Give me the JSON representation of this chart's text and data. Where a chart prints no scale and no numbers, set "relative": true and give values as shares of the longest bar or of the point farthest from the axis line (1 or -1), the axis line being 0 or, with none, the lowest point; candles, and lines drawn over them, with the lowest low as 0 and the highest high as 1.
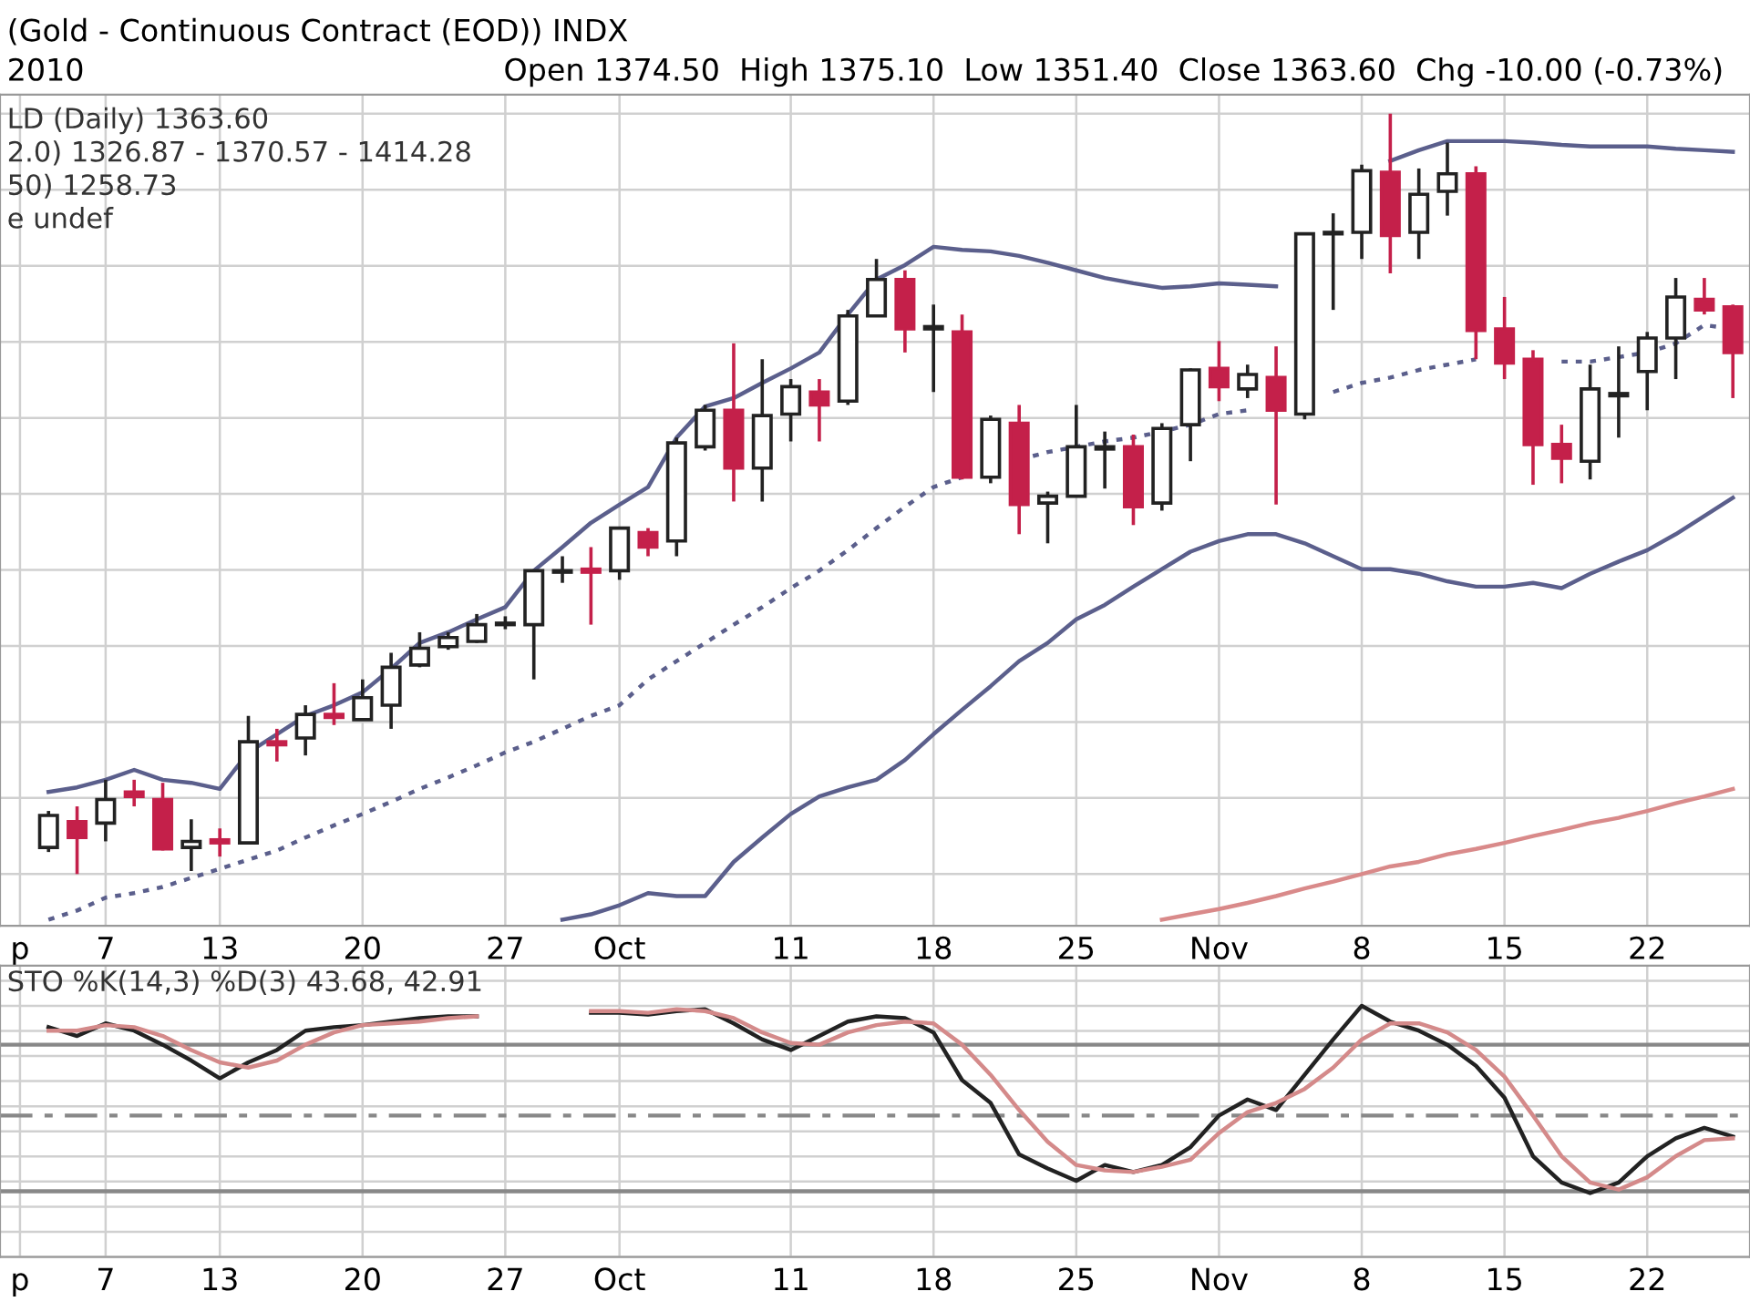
{
  "chart_data": [
    {
      "type": "candlestick",
      "title": "(Gold - Continuous Contract (EOD)) INDX",
      "subtitle": "2010",
      "annotations": [
        "Open 1374.50  High 1375.10  Low 1351.40  Close 1363.60  Chg -10.00 (-0.73%)",
        "LD (Daily) 1363.60",
        "2.0) 1326.87 - 1370.57 - 1414.28",
        "50) 1258.73",
        "e undef"
      ],
      "categories": [
        "p",
        null,
        null,
        "7",
        null,
        null,
        null,
        "13",
        null,
        null,
        null,
        null,
        "20",
        null,
        null,
        null,
        null,
        "27",
        null,
        null,
        null,
        "Oct",
        null,
        null,
        null,
        null,
        null,
        "11",
        null,
        null,
        null,
        null,
        "18",
        null,
        null,
        null,
        null,
        "25",
        null,
        null,
        null,
        null,
        "Nov",
        null,
        null,
        null,
        null,
        "8",
        null,
        null,
        null,
        null,
        "15",
        null,
        null,
        null,
        null,
        "22",
        null,
        null,
        null
      ],
      "ohlc": [
        null,
        [
          0.035,
          0.083,
          0.029,
          0.077
        ],
        [
          0.069,
          0.089,
          0,
          0.048
        ],
        [
          0.067,
          0.124,
          0.043,
          0.098
        ],
        [
          0.108,
          0.124,
          0.089,
          0.102
        ],
        [
          0.098,
          0.12,
          0.031,
          0.033
        ],
        [
          0.035,
          0.072,
          0.004,
          0.043
        ],
        [
          0.045,
          0.06,
          0.023,
          0.041
        ],
        [
          0.041,
          0.208,
          0.041,
          0.174
        ],
        [
          0.174,
          0.191,
          0.148,
          0.17
        ],
        [
          0.179,
          0.222,
          0.156,
          0.21
        ],
        [
          0.21,
          0.251,
          0.196,
          0.206
        ],
        [
          0.203,
          0.256,
          0.203,
          0.232
        ],
        [
          0.222,
          0.291,
          0.191,
          0.272
        ],
        [
          0.275,
          0.318,
          0.272,
          0.297
        ],
        [
          0.299,
          0.318,
          0.295,
          0.311
        ],
        [
          0.306,
          0.342,
          0.304,
          0.328
        ],
        [
          0.328,
          0.339,
          0.322,
          0.33
        ],
        [
          0.328,
          0.399,
          0.256,
          0.399
        ],
        [
          0.397,
          0.418,
          0.383,
          0.399
        ],
        [
          0.401,
          0.43,
          0.328,
          0.397
        ],
        [
          0.399,
          0.455,
          0.387,
          0.455
        ],
        [
          0.449,
          0.455,
          0.418,
          0.43
        ],
        [
          0.438,
          0.574,
          0.418,
          0.567
        ],
        [
          0.562,
          0.617,
          0.557,
          0.61
        ],
        [
          0.61,
          0.698,
          0.49,
          0.534
        ],
        [
          0.534,
          0.677,
          0.49,
          0.603
        ],
        [
          0.605,
          0.651,
          0.569,
          0.641
        ],
        [
          0.634,
          0.651,
          0.569,
          0.617
        ],
        [
          0.622,
          0.742,
          0.617,
          0.734
        ],
        [
          0.734,
          0.809,
          0.734,
          0.782
        ],
        [
          0.782,
          0.794,
          0.686,
          0.717
        ],
        [
          0.717,
          0.749,
          0.634,
          0.72
        ],
        [
          0.713,
          0.736,
          0.519,
          0.522
        ],
        [
          0.522,
          0.603,
          0.514,
          0.598
        ],
        [
          0.593,
          0.617,
          0.447,
          0.486
        ],
        [
          0.488,
          0.503,
          0.435,
          0.497
        ],
        [
          0.497,
          0.617,
          0.497,
          0.562
        ],
        [
          0.559,
          0.582,
          0.507,
          0.562
        ],
        [
          0.562,
          0.578,
          0.459,
          0.483
        ],
        [
          0.488,
          0.593,
          0.478,
          0.586
        ],
        [
          0.591,
          0.665,
          0.543,
          0.663
        ],
        [
          0.665,
          0.701,
          0.622,
          0.641
        ],
        [
          0.638,
          0.67,
          0.626,
          0.657
        ],
        [
          0.653,
          0.694,
          0.486,
          0.61
        ],
        [
          0.605,
          0.842,
          0.598,
          0.842
        ],
        [
          0.842,
          0.869,
          0.742,
          0.844
        ],
        [
          0.844,
          0.933,
          0.809,
          0.925
        ],
        [
          0.923,
          1,
          0.79,
          0.84
        ],
        [
          0.844,
          0.928,
          0.809,
          0.894
        ],
        [
          0.898,
          0.962,
          0.866,
          0.921
        ],
        [
          0.921,
          0.931,
          0.677,
          0.715
        ],
        [
          0.717,
          0.759,
          0.651,
          0.672
        ],
        [
          0.677,
          0.689,
          0.512,
          0.565
        ],
        [
          0.565,
          0.591,
          0.514,
          0.547
        ],
        [
          0.543,
          0.67,
          0.519,
          0.638
        ],
        [
          0.629,
          0.694,
          0.574,
          0.632
        ],
        [
          0.661,
          0.713,
          0.61,
          0.705
        ],
        [
          0.705,
          0.784,
          0.651,
          0.759
        ],
        [
          0.756,
          0.784,
          0.736,
          0.742
        ],
        [
          0.746,
          0.749,
          0.626,
          0.686
        ]
      ],
      "series": [
        {
          "type": "line",
          "color": "#5b5f8c",
          "line_style": "solid",
          "values": [
            null,
            0.108,
            0.114,
            0.124,
            0.137,
            0.124,
            0.12,
            0.112,
            0.16,
            0.184,
            0.208,
            0.222,
            0.239,
            0.27,
            0.304,
            0.318,
            0.335,
            0.351,
            0.399,
            0.43,
            0.462,
            0.486,
            0.509,
            0.574,
            0.615,
            0.626,
            0.646,
            0.665,
            0.686,
            0.736,
            0.782,
            0.801,
            0.825,
            0.821,
            0.819,
            0.813,
            0.804,
            0.794,
            0.784,
            0.777,
            0.771,
            0.773,
            0.777,
            0.775,
            0.773,
            null,
            null,
            null,
            0.938,
            0.952,
            0.964,
            0.964,
            0.964,
            0.962,
            0.959,
            0.957,
            0.957,
            0.957,
            0.954,
            0.952,
            0.95
          ]
        },
        {
          "type": "line",
          "color": "#5b5f8c",
          "line_style": "dotted",
          "values": [
            null,
            -0.06,
            -0.048,
            -0.031,
            -0.025,
            -0.017,
            -0.005,
            0.007,
            0.019,
            0.031,
            0.048,
            0.064,
            0.079,
            0.095,
            0.112,
            0.127,
            0.143,
            0.16,
            0.174,
            0.191,
            0.208,
            0.222,
            0.256,
            0.28,
            0.304,
            0.328,
            0.351,
            0.376,
            0.399,
            0.426,
            0.455,
            0.483,
            0.509,
            0.522,
            null,
            0.545,
            0.555,
            0.562,
            0.569,
            0.574,
            0.582,
            0.591,
            0.605,
            0.61,
            null,
            null,
            0.634,
            0.646,
            0.653,
            0.663,
            0.67,
            0.677,
            null,
            null,
            0.674,
            0.674,
            0.68,
            0.686,
            0.698,
            0.722,
            0.717
          ]
        },
        {
          "type": "line",
          "color": "#5b5f8c",
          "line_style": "solid",
          "values": [
            null,
            null,
            null,
            null,
            null,
            null,
            null,
            null,
            null,
            null,
            null,
            null,
            null,
            null,
            null,
            null,
            null,
            null,
            null,
            -0.06,
            -0.053,
            -0.041,
            -0.025,
            -0.029,
            -0.029,
            0.016,
            0.048,
            0.079,
            0.102,
            0.114,
            0.124,
            0.15,
            0.184,
            0.216,
            0.247,
            0.28,
            0.304,
            0.335,
            0.354,
            0.378,
            0.401,
            0.424,
            0.438,
            0.447,
            0.447,
            0.435,
            0.418,
            0.401,
            0.401,
            0.395,
            0.385,
            0.378,
            0.378,
            0.383,
            0.376,
            0.395,
            0.411,
            0.426,
            0.447,
            0.471,
            0.495
          ]
        },
        {
          "type": "line",
          "color": "#d98a8a",
          "line_style": "solid",
          "values": [
            null,
            null,
            null,
            null,
            null,
            null,
            null,
            null,
            null,
            null,
            null,
            null,
            null,
            null,
            null,
            null,
            null,
            null,
            null,
            null,
            null,
            null,
            null,
            null,
            null,
            null,
            null,
            null,
            null,
            null,
            null,
            null,
            null,
            null,
            null,
            null,
            null,
            null,
            null,
            null,
            -0.06,
            -0.053,
            -0.046,
            -0.038,
            -0.029,
            -0.019,
            -0.01,
            0,
            0.01,
            0.016,
            0.026,
            0.033,
            0.041,
            0.05,
            0.058,
            0.067,
            0.074,
            0.083,
            0.093,
            0.102,
            0.112
          ]
        }
      ],
      "relative": true,
      "grid": true,
      "tick_labels": "x"
    },
    {
      "type": "line",
      "title": "STO %K(14,3) %D(3) 43.68, 42.91",
      "categories": [
        "p",
        null,
        null,
        "7",
        null,
        null,
        null,
        "13",
        null,
        null,
        null,
        null,
        "20",
        null,
        null,
        null,
        null,
        "27",
        null,
        null,
        null,
        "Oct",
        null,
        null,
        null,
        null,
        null,
        "11",
        null,
        null,
        null,
        null,
        "18",
        null,
        null,
        null,
        null,
        "25",
        null,
        null,
        null,
        null,
        "Nov",
        null,
        null,
        null,
        null,
        "8",
        null,
        null,
        null,
        null,
        "15",
        null,
        null,
        null,
        null,
        "22",
        null,
        null,
        null
      ],
      "series": [
        {
          "color": "#222222",
          "values": [
            null,
            0.915,
            0.88,
            0.93,
            0.901,
            0.845,
            0.782,
            0.711,
            0.775,
            0.824,
            0.901,
            0.915,
            0.923,
            0.937,
            0.951,
            0.958,
            0.958,
            null,
            null,
            null,
            0.972,
            0.972,
            0.965,
            0.979,
            0.986,
            0.93,
            0.866,
            0.824,
            0.88,
            0.937,
            0.958,
            0.951,
            0.894,
            0.704,
            0.613,
            0.408,
            0.352,
            0.303,
            0.366,
            0.338,
            0.366,
            0.437,
            0.563,
            0.627,
            0.585,
            0.725,
            0.866,
            1,
            0.937,
            0.901,
            0.845,
            0.761,
            0.634,
            0.401,
            0.296,
            0.254,
            0.296,
            0.401,
            0.472,
            0.514,
            0.479
          ]
        },
        {
          "color": "#d48a8a",
          "values": [
            null,
            0.901,
            0.901,
            0.923,
            0.915,
            0.88,
            0.824,
            0.775,
            0.754,
            0.782,
            0.845,
            0.894,
            0.923,
            0.93,
            0.937,
            0.951,
            0.958,
            null,
            null,
            null,
            0.979,
            0.979,
            0.972,
            0.986,
            0.979,
            0.951,
            0.894,
            0.852,
            0.845,
            0.894,
            0.923,
            0.937,
            0.93,
            0.845,
            0.725,
            0.585,
            0.458,
            0.366,
            0.345,
            0.338,
            0.359,
            0.387,
            0.493,
            0.577,
            0.613,
            0.669,
            0.754,
            0.866,
            0.93,
            0.93,
            0.894,
            0.824,
            0.718,
            0.563,
            0.401,
            0.296,
            0.268,
            0.317,
            0.401,
            0.465,
            0.472
          ]
        }
      ],
      "ref_lines": [
        {
          "axis": "y",
          "value": 0.845,
          "color": "#888888",
          "line_style": "solid"
        },
        {
          "axis": "y",
          "value": 0.563,
          "color": "#888888",
          "line_style": "dashed"
        },
        {
          "axis": "y",
          "value": 0.261,
          "color": "#888888",
          "line_style": "solid"
        }
      ],
      "relative": true,
      "grid": true,
      "tick_labels": "x"
    }
  ]
}
